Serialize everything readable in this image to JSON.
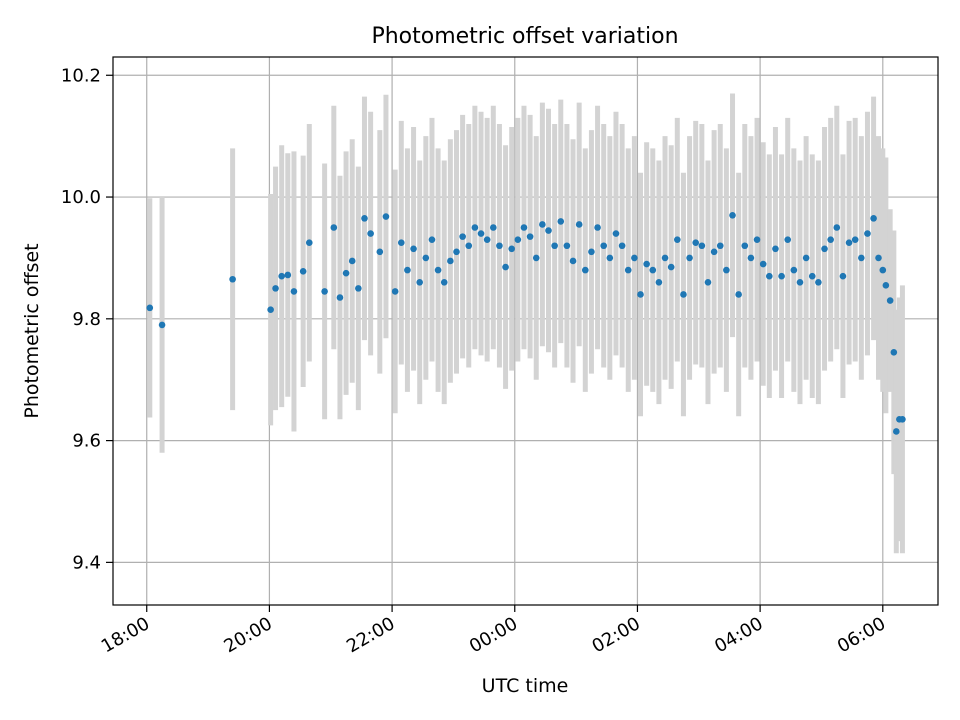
{
  "chart_data": {
    "type": "scatter",
    "title": "Photometric offset variation",
    "xlabel": "UTC time",
    "ylabel": "Photometric offset",
    "x_unit": "hours",
    "x_ticks": [
      {
        "value": -6,
        "label": "18:00"
      },
      {
        "value": -4,
        "label": "20:00"
      },
      {
        "value": -2,
        "label": "22:00"
      },
      {
        "value": 0,
        "label": "00:00"
      },
      {
        "value": 2,
        "label": "02:00"
      },
      {
        "value": 4,
        "label": "04:00"
      },
      {
        "value": 6,
        "label": "06:00"
      }
    ],
    "y_ticks": [
      9.4,
      9.6,
      9.8,
      10.0,
      10.2
    ],
    "xlim": [
      -6.55,
      6.9
    ],
    "ylim": [
      9.33,
      10.23
    ],
    "grid": true,
    "colors": {
      "points": "#1f77b4",
      "errorbars": "#d3d3d3",
      "grid": "#b0b0b0"
    },
    "points": [
      [
        -5.95,
        9.818,
        0.18
      ],
      [
        -5.75,
        9.79,
        0.21
      ],
      [
        -4.6,
        9.865,
        0.215
      ],
      [
        -3.98,
        9.815,
        0.19
      ],
      [
        -3.9,
        9.85,
        0.2
      ],
      [
        -3.8,
        9.87,
        0.215
      ],
      [
        -3.7,
        9.872,
        0.2
      ],
      [
        -3.6,
        9.845,
        0.23
      ],
      [
        -3.45,
        9.878,
        0.19
      ],
      [
        -3.35,
        9.925,
        0.195
      ],
      [
        -3.1,
        9.845,
        0.21
      ],
      [
        -2.95,
        9.95,
        0.2
      ],
      [
        -2.85,
        9.835,
        0.2
      ],
      [
        -2.75,
        9.875,
        0.2
      ],
      [
        -2.65,
        9.895,
        0.2
      ],
      [
        -2.55,
        9.85,
        0.2
      ],
      [
        -2.45,
        9.965,
        0.2
      ],
      [
        -2.35,
        9.94,
        0.2
      ],
      [
        -2.2,
        9.91,
        0.2
      ],
      [
        -2.1,
        9.968,
        0.2
      ],
      [
        -1.95,
        9.845,
        0.2
      ],
      [
        -1.85,
        9.925,
        0.2
      ],
      [
        -1.75,
        9.88,
        0.2
      ],
      [
        -1.65,
        9.915,
        0.2
      ],
      [
        -1.55,
        9.86,
        0.2
      ],
      [
        -1.45,
        9.9,
        0.2
      ],
      [
        -1.35,
        9.93,
        0.2
      ],
      [
        -1.25,
        9.88,
        0.2
      ],
      [
        -1.15,
        9.86,
        0.2
      ],
      [
        -1.05,
        9.895,
        0.2
      ],
      [
        -0.95,
        9.91,
        0.2
      ],
      [
        -0.85,
        9.935,
        0.2
      ],
      [
        -0.75,
        9.92,
        0.2
      ],
      [
        -0.65,
        9.95,
        0.2
      ],
      [
        -0.55,
        9.94,
        0.2
      ],
      [
        -0.45,
        9.93,
        0.2
      ],
      [
        -0.35,
        9.95,
        0.2
      ],
      [
        -0.25,
        9.92,
        0.2
      ],
      [
        -0.15,
        9.885,
        0.2
      ],
      [
        -0.05,
        9.915,
        0.2
      ],
      [
        0.05,
        9.93,
        0.2
      ],
      [
        0.15,
        9.95,
        0.2
      ],
      [
        0.25,
        9.935,
        0.2
      ],
      [
        0.35,
        9.9,
        0.2
      ],
      [
        0.45,
        9.955,
        0.2
      ],
      [
        0.55,
        9.945,
        0.2
      ],
      [
        0.65,
        9.92,
        0.2
      ],
      [
        0.75,
        9.96,
        0.2
      ],
      [
        0.85,
        9.92,
        0.2
      ],
      [
        0.95,
        9.895,
        0.2
      ],
      [
        1.05,
        9.955,
        0.2
      ],
      [
        1.15,
        9.88,
        0.2
      ],
      [
        1.25,
        9.91,
        0.2
      ],
      [
        1.35,
        9.95,
        0.2
      ],
      [
        1.45,
        9.92,
        0.2
      ],
      [
        1.55,
        9.9,
        0.2
      ],
      [
        1.65,
        9.94,
        0.2
      ],
      [
        1.75,
        9.92,
        0.2
      ],
      [
        1.85,
        9.88,
        0.2
      ],
      [
        1.95,
        9.9,
        0.2
      ],
      [
        2.05,
        9.84,
        0.2
      ],
      [
        2.15,
        9.89,
        0.2
      ],
      [
        2.25,
        9.88,
        0.2
      ],
      [
        2.35,
        9.86,
        0.2
      ],
      [
        2.45,
        9.9,
        0.2
      ],
      [
        2.55,
        9.885,
        0.2
      ],
      [
        2.65,
        9.93,
        0.2
      ],
      [
        2.75,
        9.84,
        0.2
      ],
      [
        2.85,
        9.9,
        0.2
      ],
      [
        2.95,
        9.925,
        0.2
      ],
      [
        3.05,
        9.92,
        0.2
      ],
      [
        3.15,
        9.86,
        0.2
      ],
      [
        3.25,
        9.91,
        0.2
      ],
      [
        3.35,
        9.92,
        0.2
      ],
      [
        3.45,
        9.88,
        0.2
      ],
      [
        3.55,
        9.97,
        0.2
      ],
      [
        3.65,
        9.84,
        0.2
      ],
      [
        3.75,
        9.92,
        0.2
      ],
      [
        3.85,
        9.9,
        0.2
      ],
      [
        3.95,
        9.93,
        0.2
      ],
      [
        4.05,
        9.89,
        0.2
      ],
      [
        4.15,
        9.87,
        0.2
      ],
      [
        4.25,
        9.915,
        0.2
      ],
      [
        4.35,
        9.87,
        0.2
      ],
      [
        4.45,
        9.93,
        0.2
      ],
      [
        4.55,
        9.88,
        0.2
      ],
      [
        4.65,
        9.86,
        0.2
      ],
      [
        4.75,
        9.9,
        0.2
      ],
      [
        4.85,
        9.87,
        0.2
      ],
      [
        4.95,
        9.86,
        0.2
      ],
      [
        5.05,
        9.915,
        0.2
      ],
      [
        5.15,
        9.93,
        0.2
      ],
      [
        5.25,
        9.95,
        0.2
      ],
      [
        5.35,
        9.87,
        0.2
      ],
      [
        5.45,
        9.925,
        0.2
      ],
      [
        5.55,
        9.93,
        0.2
      ],
      [
        5.65,
        9.9,
        0.2
      ],
      [
        5.75,
        9.94,
        0.2
      ],
      [
        5.85,
        9.965,
        0.2
      ],
      [
        5.93,
        9.9,
        0.2
      ],
      [
        6.0,
        9.88,
        0.2
      ],
      [
        6.05,
        9.855,
        0.21
      ],
      [
        6.12,
        9.83,
        0.15
      ],
      [
        6.18,
        9.745,
        0.2
      ],
      [
        6.22,
        9.615,
        0.2
      ],
      [
        6.27,
        9.635,
        0.2
      ],
      [
        6.32,
        9.635,
        0.22
      ]
    ]
  }
}
